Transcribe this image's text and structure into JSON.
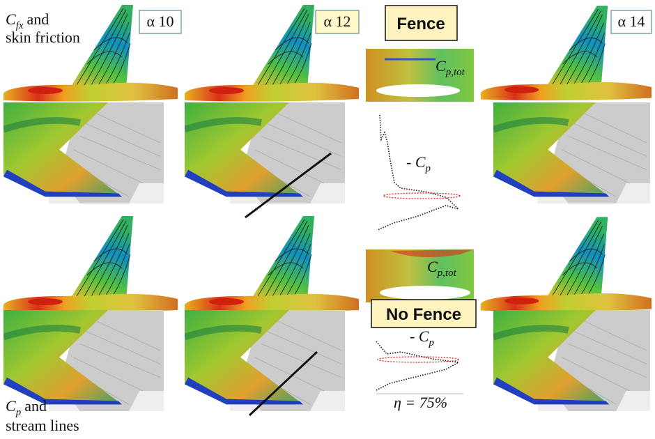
{
  "labels": {
    "top_left": {
      "symbol": "C",
      "subscript": "fx",
      "rest": "and",
      "line2": "skin friction"
    },
    "bottom_left": {
      "symbol": "C",
      "subscript": "p",
      "rest": "and",
      "line2": "stream lines"
    },
    "alpha_10": "α 10",
    "alpha_12": "α 12",
    "alpha_14": "α 14",
    "fence": "Fence",
    "no_fence": "No Fence",
    "cp_tot_fence": {
      "symbol": "C",
      "subscript": "p,tot"
    },
    "cp_tot_no_fence": {
      "symbol": "C",
      "subscript": "p,tot"
    },
    "cp_fence": {
      "prefix": "- ",
      "symbol": "C",
      "subscript": "p"
    },
    "cp_no_fence": {
      "prefix": "- ",
      "symbol": "C",
      "subscript": "p"
    },
    "eta": "η = 75%"
  }
}
